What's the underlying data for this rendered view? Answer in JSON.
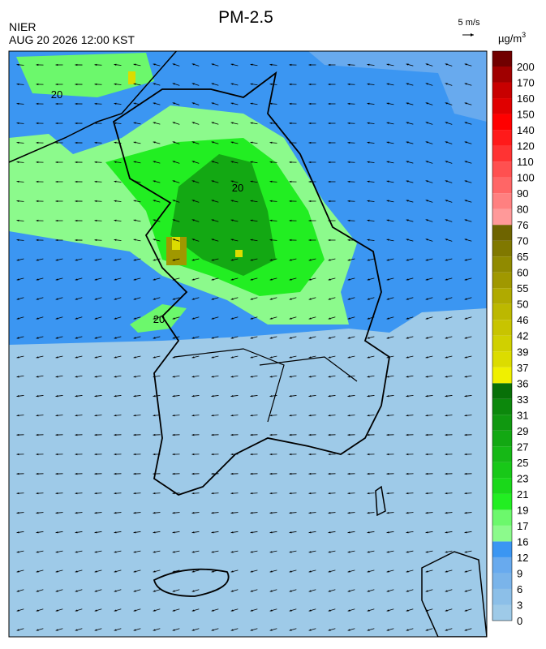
{
  "header": {
    "title": "PM-2.5",
    "agency": "NIER",
    "datetime": "AUG 20 2026 12:00 KST",
    "wind_scale": "5 m/s"
  },
  "legend": {
    "unit": "µg/m",
    "unit_exponent": "3",
    "labels": [
      "0",
      "3",
      "6",
      "9",
      "12",
      "16",
      "17",
      "19",
      "21",
      "23",
      "25",
      "27",
      "29",
      "31",
      "33",
      "36",
      "37",
      "39",
      "42",
      "46",
      "50",
      "55",
      "60",
      "65",
      "70",
      "76",
      "80",
      "90",
      "100",
      "110",
      "120",
      "140",
      "150",
      "160",
      "170",
      "200"
    ],
    "colors": [
      "#9ecae8",
      "#8cbfe8",
      "#7ab4ea",
      "#68aaee",
      "#3b96f2",
      "#8cfa8c",
      "#6cf86c",
      "#22ee22",
      "#1ad81a",
      "#18c818",
      "#16b816",
      "#13a813",
      "#109810",
      "#0c880c",
      "#087008",
      "#f0f000",
      "#dcdc00",
      "#d0d000",
      "#c8c400",
      "#bcb800",
      "#b0aa00",
      "#a09800",
      "#908a00",
      "#807800",
      "#6e6400",
      "#ff9999",
      "#ff8080",
      "#ff6666",
      "#ff5050",
      "#ff3333",
      "#ff1a1a",
      "#ff0000",
      "#e00000",
      "#c80000",
      "#a00000",
      "#700000"
    ]
  },
  "map": {
    "contour_labels": [
      "20",
      "20",
      "20"
    ]
  }
}
